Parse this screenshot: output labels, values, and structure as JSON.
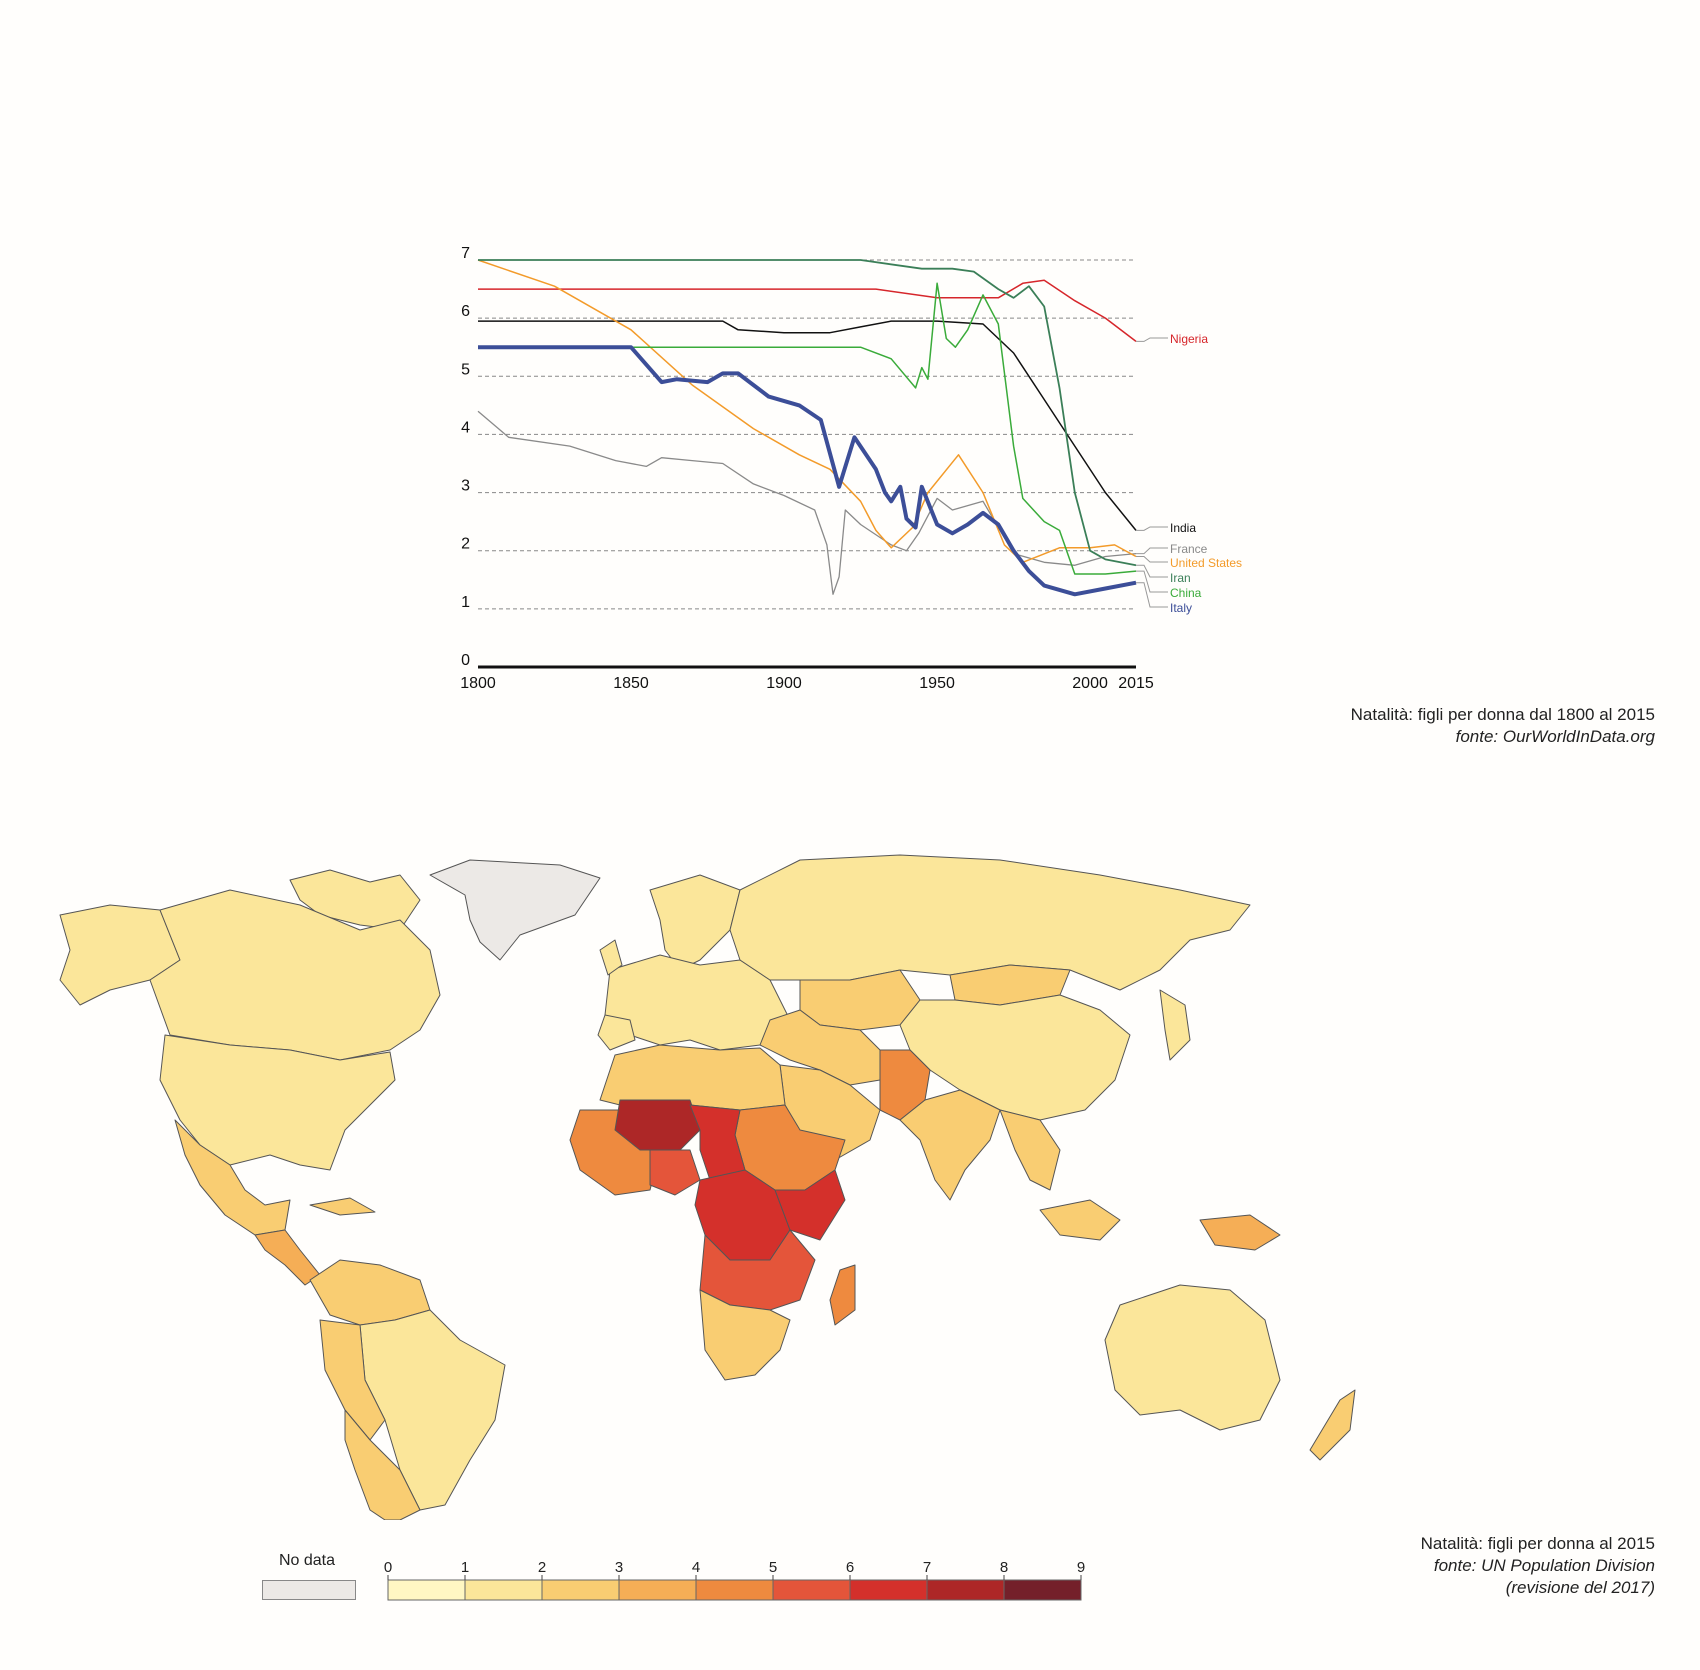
{
  "chart_data": {
    "type": "line",
    "title": "",
    "xlabel": "",
    "ylabel": "",
    "xlim": [
      1800,
      2015
    ],
    "ylim": [
      0,
      7
    ],
    "x_ticks": [
      "1800",
      "1850",
      "1900",
      "1950",
      "2000",
      "2015"
    ],
    "x_tick_values": [
      1800,
      1850,
      1900,
      1950,
      2000,
      2015
    ],
    "y_ticks": [
      "0",
      "1",
      "2",
      "3",
      "4",
      "5",
      "6",
      "7"
    ],
    "y_tick_values": [
      0,
      1,
      2,
      3,
      4,
      5,
      6,
      7
    ],
    "grid": "horizontal dashed",
    "legend": "right end labels",
    "series": [
      {
        "name": "Nigeria",
        "color": "#d6262b",
        "width": 1.5,
        "points": [
          [
            1800,
            6.5
          ],
          [
            1930,
            6.5
          ],
          [
            1950,
            6.35
          ],
          [
            1970,
            6.35
          ],
          [
            1978,
            6.6
          ],
          [
            1985,
            6.65
          ],
          [
            1995,
            6.3
          ],
          [
            2005,
            6.0
          ],
          [
            2015,
            5.6
          ]
        ]
      },
      {
        "name": "India",
        "color": "#111111",
        "width": 1.5,
        "points": [
          [
            1800,
            5.95
          ],
          [
            1880,
            5.95
          ],
          [
            1885,
            5.8
          ],
          [
            1900,
            5.75
          ],
          [
            1915,
            5.75
          ],
          [
            1925,
            5.85
          ],
          [
            1935,
            5.95
          ],
          [
            1950,
            5.95
          ],
          [
            1965,
            5.9
          ],
          [
            1975,
            5.4
          ],
          [
            1985,
            4.6
          ],
          [
            1995,
            3.8
          ],
          [
            2005,
            3.0
          ],
          [
            2015,
            2.35
          ]
        ]
      },
      {
        "name": "France",
        "color": "#8a8a8a",
        "width": 1.3,
        "points": [
          [
            1800,
            4.4
          ],
          [
            1810,
            3.95
          ],
          [
            1830,
            3.8
          ],
          [
            1845,
            3.55
          ],
          [
            1855,
            3.45
          ],
          [
            1860,
            3.6
          ],
          [
            1870,
            3.55
          ],
          [
            1880,
            3.5
          ],
          [
            1890,
            3.15
          ],
          [
            1900,
            2.95
          ],
          [
            1910,
            2.7
          ],
          [
            1914,
            2.1
          ],
          [
            1916,
            1.25
          ],
          [
            1918,
            1.55
          ],
          [
            1920,
            2.7
          ],
          [
            1925,
            2.45
          ],
          [
            1935,
            2.1
          ],
          [
            1940,
            2.0
          ],
          [
            1944,
            2.3
          ],
          [
            1950,
            2.9
          ],
          [
            1955,
            2.7
          ],
          [
            1965,
            2.85
          ],
          [
            1975,
            1.95
          ],
          [
            1985,
            1.8
          ],
          [
            1995,
            1.75
          ],
          [
            2005,
            1.9
          ],
          [
            2015,
            1.95
          ]
        ]
      },
      {
        "name": "United States",
        "color": "#f39b2a",
        "width": 1.5,
        "points": [
          [
            1800,
            7.0
          ],
          [
            1825,
            6.55
          ],
          [
            1850,
            5.8
          ],
          [
            1870,
            4.85
          ],
          [
            1890,
            4.1
          ],
          [
            1905,
            3.65
          ],
          [
            1915,
            3.4
          ],
          [
            1925,
            2.85
          ],
          [
            1930,
            2.35
          ],
          [
            1935,
            2.05
          ],
          [
            1942,
            2.4
          ],
          [
            1947,
            3.0
          ],
          [
            1957,
            3.65
          ],
          [
            1965,
            3.0
          ],
          [
            1972,
            2.1
          ],
          [
            1978,
            1.8
          ],
          [
            1990,
            2.05
          ],
          [
            2000,
            2.05
          ],
          [
            2008,
            2.1
          ],
          [
            2015,
            1.9
          ]
        ]
      },
      {
        "name": "Iran",
        "color": "#3b7f58",
        "width": 1.8,
        "points": [
          [
            1800,
            7.0
          ],
          [
            1925,
            7.0
          ],
          [
            1945,
            6.85
          ],
          [
            1955,
            6.85
          ],
          [
            1962,
            6.8
          ],
          [
            1970,
            6.5
          ],
          [
            1975,
            6.35
          ],
          [
            1980,
            6.55
          ],
          [
            1985,
            6.2
          ],
          [
            1990,
            4.8
          ],
          [
            1995,
            3.0
          ],
          [
            2000,
            2.0
          ],
          [
            2005,
            1.85
          ],
          [
            2015,
            1.75
          ]
        ]
      },
      {
        "name": "China",
        "color": "#3aab3a",
        "width": 1.5,
        "points": [
          [
            1800,
            5.5
          ],
          [
            1925,
            5.5
          ],
          [
            1935,
            5.3
          ],
          [
            1943,
            4.8
          ],
          [
            1945,
            5.15
          ],
          [
            1947,
            4.95
          ],
          [
            1950,
            6.6
          ],
          [
            1953,
            5.65
          ],
          [
            1956,
            5.5
          ],
          [
            1960,
            5.8
          ],
          [
            1965,
            6.4
          ],
          [
            1970,
            5.9
          ],
          [
            1975,
            3.8
          ],
          [
            1978,
            2.9
          ],
          [
            1985,
            2.5
          ],
          [
            1990,
            2.35
          ],
          [
            1995,
            1.6
          ],
          [
            2005,
            1.6
          ],
          [
            2015,
            1.65
          ]
        ]
      },
      {
        "name": "Italy",
        "color": "#3c4e98",
        "width": 4,
        "points": [
          [
            1800,
            5.5
          ],
          [
            1850,
            5.5
          ],
          [
            1860,
            4.9
          ],
          [
            1865,
            4.95
          ],
          [
            1875,
            4.9
          ],
          [
            1880,
            5.05
          ],
          [
            1885,
            5.05
          ],
          [
            1890,
            4.85
          ],
          [
            1895,
            4.65
          ],
          [
            1905,
            4.5
          ],
          [
            1912,
            4.25
          ],
          [
            1918,
            3.1
          ],
          [
            1923,
            3.95
          ],
          [
            1930,
            3.4
          ],
          [
            1933,
            3.0
          ],
          [
            1935,
            2.85
          ],
          [
            1938,
            3.1
          ],
          [
            1940,
            2.55
          ],
          [
            1943,
            2.4
          ],
          [
            1945,
            3.1
          ],
          [
            1950,
            2.45
          ],
          [
            1955,
            2.3
          ],
          [
            1960,
            2.45
          ],
          [
            1965,
            2.65
          ],
          [
            1970,
            2.45
          ],
          [
            1975,
            2.0
          ],
          [
            1980,
            1.65
          ],
          [
            1985,
            1.4
          ],
          [
            1995,
            1.25
          ],
          [
            2005,
            1.35
          ],
          [
            2015,
            1.45
          ]
        ]
      }
    ]
  },
  "chart_caption": {
    "title": "Natalità: figli per donna dal 1800 al 2015",
    "source": "fonte: OurWorldInData.org"
  },
  "map": {
    "caption_title": "Natalità: figli per donna al 2015",
    "caption_source": "fonte: UN Population Division",
    "caption_revision": "(revisione del 2017)",
    "no_data_label": "No data",
    "no_data_color": "#ece9e6",
    "scale_labels": [
      "0",
      "1",
      "2",
      "3",
      "4",
      "5",
      "6",
      "7",
      "8",
      "9"
    ],
    "scale_colors": [
      "#fff7c3",
      "#fbe69a",
      "#f9cd72",
      "#f5ae56",
      "#ee8a3f",
      "#e4553a",
      "#d4302b",
      "#ad2727",
      "#74202a"
    ],
    "border_color": "#555555"
  }
}
